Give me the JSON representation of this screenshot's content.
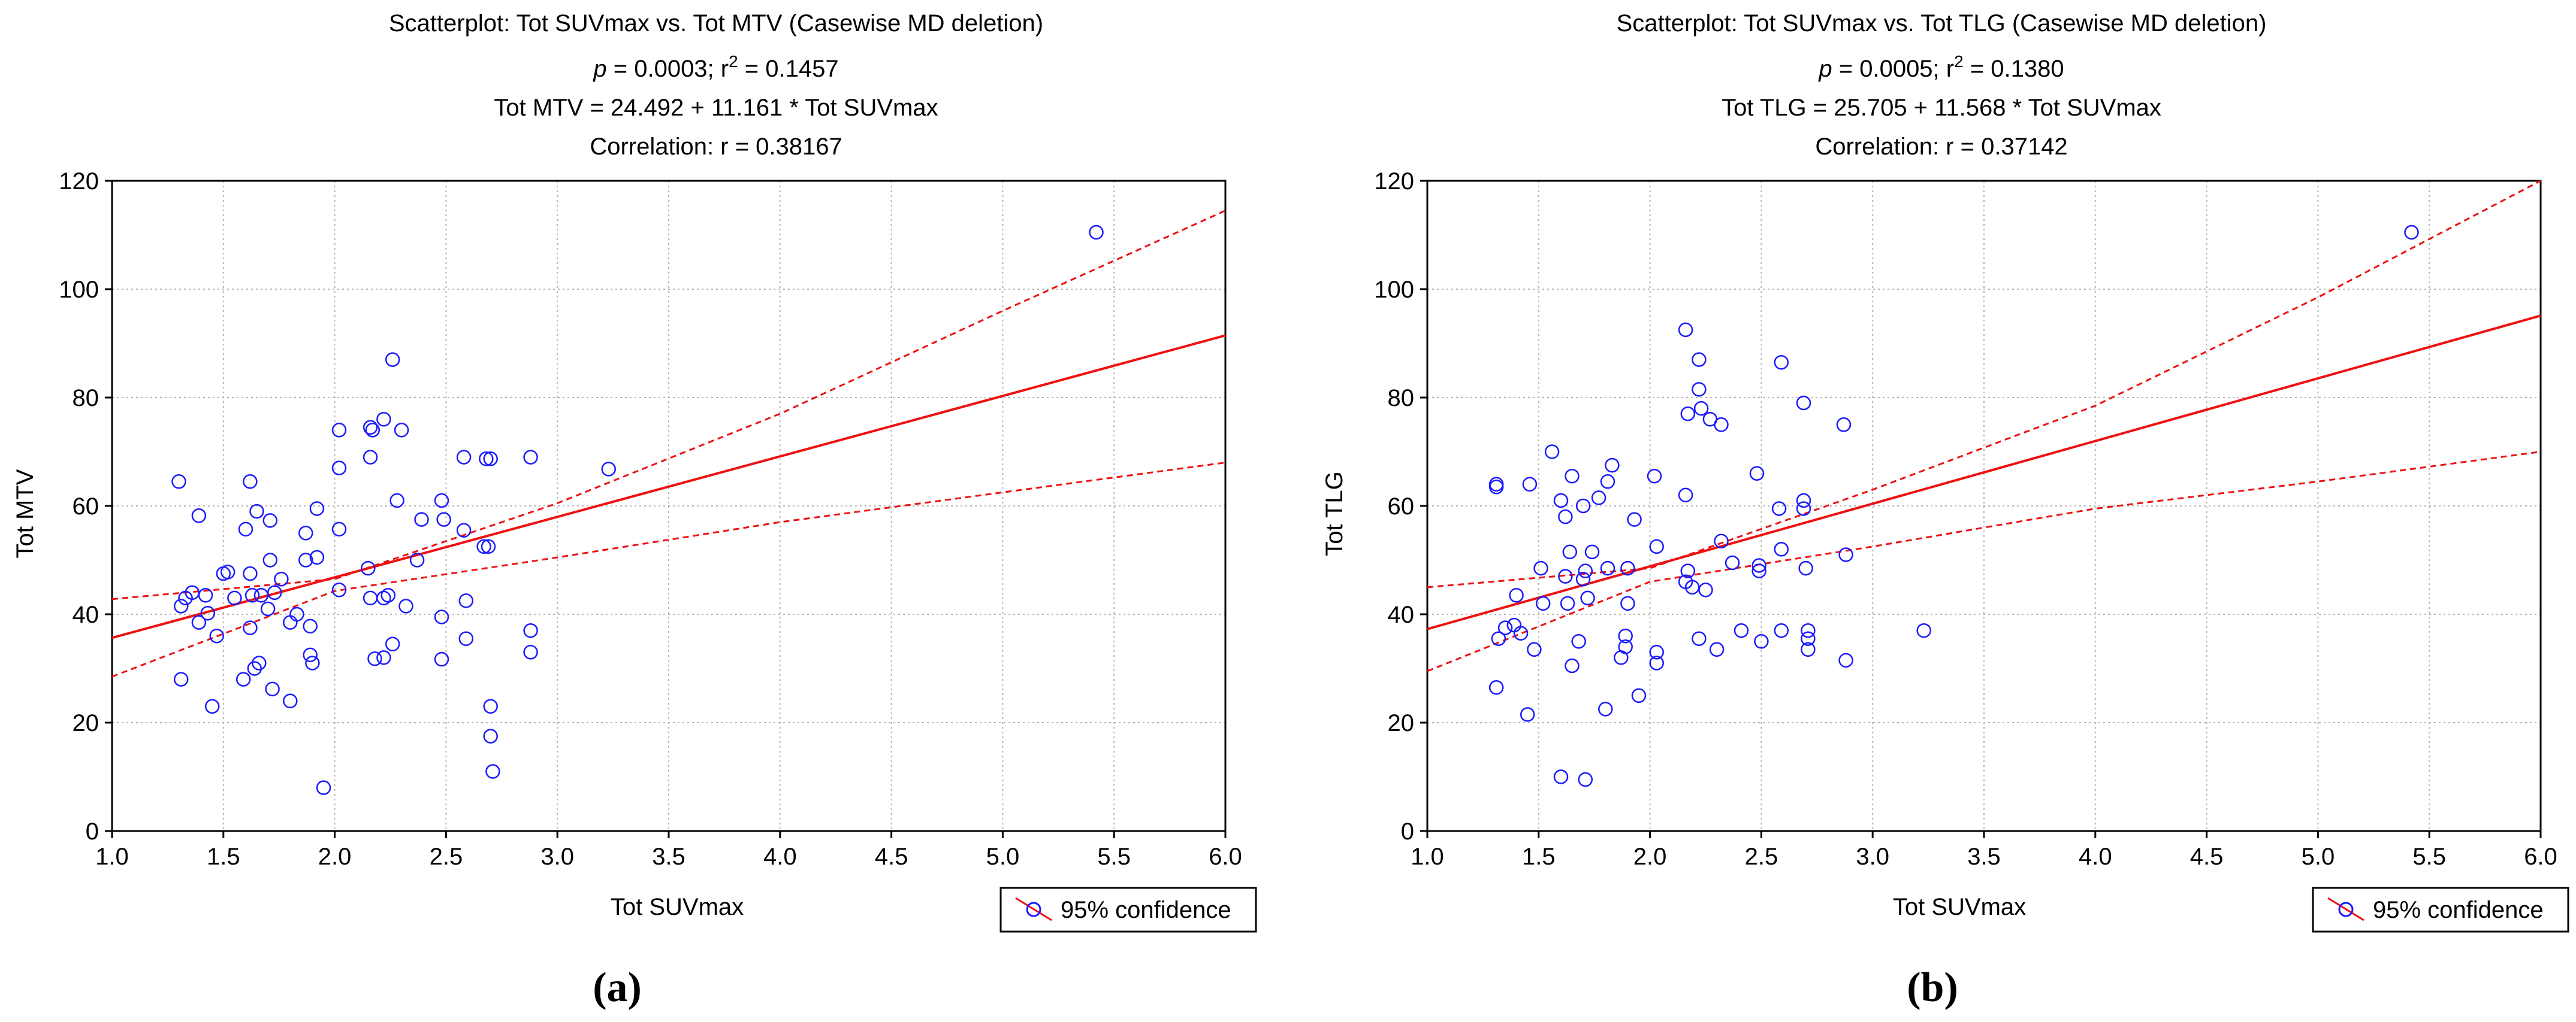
{
  "chart_data": [
    {
      "type": "scatter",
      "panel_label": "(a)",
      "title": "Scatterplot: Tot SUVmax vs. Tot MTV (Casewise MD deletion)",
      "stats": {
        "p_label": "p",
        "p_rest": " = 0.0003; r",
        "r2_exp": "2",
        "r2_rest": " = 0.1457"
      },
      "equation": "Tot MTV = 24.492 + 11.161 * Tot SUVmax",
      "correlation": "Correlation: r = 0.38167",
      "xlabel": "Tot SUVmax",
      "ylabel": "Tot MTV",
      "xlim": [
        1.0,
        6.0
      ],
      "ylim": [
        0,
        120
      ],
      "xticks": [
        "1.0",
        "1.5",
        "2.0",
        "2.5",
        "3.0",
        "3.5",
        "4.0",
        "4.5",
        "5.0",
        "5.5",
        "6.0"
      ],
      "yticks": [
        "0",
        "20",
        "40",
        "60",
        "80",
        "100",
        "120"
      ],
      "grid": true,
      "legend": {
        "label": "95% confidence",
        "position": "bottom-right"
      },
      "regression": {
        "intercept": 24.492,
        "slope": 11.161
      },
      "ci_lower": [
        [
          1.0,
          28.5
        ],
        [
          2.0,
          44.3
        ],
        [
          3.0,
          50.5
        ],
        [
          4.0,
          57.0
        ],
        [
          5.0,
          62.5
        ],
        [
          6.0,
          68.0
        ]
      ],
      "ci_upper": [
        [
          1.0,
          42.8
        ],
        [
          2.0,
          46.5
        ],
        [
          3.0,
          60.5
        ],
        [
          4.0,
          77.0
        ],
        [
          5.0,
          96.0
        ],
        [
          6.0,
          114.5
        ]
      ],
      "colors": {
        "points": "#1a1aff",
        "line": "#ee1111",
        "grid": "#b5b5b5",
        "axis": "#000000"
      },
      "points": [
        [
          1.3,
          64.5
        ],
        [
          1.31,
          41.5
        ],
        [
          1.31,
          28.0
        ],
        [
          1.33,
          43.0
        ],
        [
          1.36,
          44.0
        ],
        [
          1.39,
          58.2
        ],
        [
          1.39,
          38.5
        ],
        [
          1.42,
          43.5
        ],
        [
          1.43,
          40.2
        ],
        [
          1.45,
          23.0
        ],
        [
          1.47,
          36.0
        ],
        [
          1.5,
          47.5
        ],
        [
          1.52,
          47.8
        ],
        [
          1.55,
          43.0
        ],
        [
          1.59,
          28.0
        ],
        [
          1.6,
          55.7
        ],
        [
          1.62,
          47.5
        ],
        [
          1.62,
          37.5
        ],
        [
          1.62,
          64.5
        ],
        [
          1.63,
          43.5
        ],
        [
          1.64,
          30.0
        ],
        [
          1.65,
          59.0
        ],
        [
          1.66,
          31.0
        ],
        [
          1.67,
          43.5
        ],
        [
          1.7,
          41.0
        ],
        [
          1.71,
          50.0
        ],
        [
          1.71,
          57.3
        ],
        [
          1.72,
          26.2
        ],
        [
          1.73,
          44.0
        ],
        [
          1.76,
          46.5
        ],
        [
          1.8,
          24.0
        ],
        [
          1.8,
          38.5
        ],
        [
          1.83,
          40.0
        ],
        [
          1.87,
          50.0
        ],
        [
          1.87,
          55.0
        ],
        [
          1.89,
          37.8
        ],
        [
          1.89,
          32.5
        ],
        [
          1.9,
          31.0
        ],
        [
          1.92,
          59.5
        ],
        [
          1.92,
          50.5
        ],
        [
          1.95,
          8.0
        ],
        [
          2.02,
          74.0
        ],
        [
          2.02,
          67.0
        ],
        [
          2.02,
          55.7
        ],
        [
          2.02,
          44.5
        ],
        [
          2.15,
          48.5
        ],
        [
          2.16,
          74.5
        ],
        [
          2.16,
          43.0
        ],
        [
          2.16,
          69.0
        ],
        [
          2.17,
          74.0
        ],
        [
          2.18,
          31.8
        ],
        [
          2.22,
          76.0
        ],
        [
          2.22,
          32.0
        ],
        [
          2.22,
          43.0
        ],
        [
          2.24,
          43.5
        ],
        [
          2.26,
          87.0
        ],
        [
          2.26,
          34.5
        ],
        [
          2.28,
          61.0
        ],
        [
          2.3,
          74.0
        ],
        [
          2.32,
          41.5
        ],
        [
          2.37,
          50.0
        ],
        [
          2.39,
          57.5
        ],
        [
          2.48,
          31.7
        ],
        [
          2.48,
          39.5
        ],
        [
          2.48,
          61.0
        ],
        [
          2.49,
          57.5
        ],
        [
          2.58,
          69.0
        ],
        [
          2.58,
          55.5
        ],
        [
          2.59,
          42.5
        ],
        [
          2.59,
          35.5
        ],
        [
          2.67,
          52.5
        ],
        [
          2.68,
          68.7
        ],
        [
          2.69,
          52.5
        ],
        [
          2.7,
          68.7
        ],
        [
          2.7,
          23.0
        ],
        [
          2.7,
          17.5
        ],
        [
          2.71,
          11.0
        ],
        [
          2.88,
          69.0
        ],
        [
          2.88,
          37.0
        ],
        [
          2.88,
          33.0
        ],
        [
          3.23,
          66.8
        ],
        [
          5.42,
          110.5
        ]
      ]
    },
    {
      "type": "scatter",
      "panel_label": "(b)",
      "title": "Scatterplot: Tot SUVmax vs. Tot TLG (Casewise MD deletion)",
      "stats": {
        "p_label": "p",
        "p_rest": " = 0.0005; r",
        "r2_exp": "2",
        "r2_rest": " = 0.1380"
      },
      "equation": "Tot TLG = 25.705 + 11.568 * Tot SUVmax",
      "correlation": "Correlation: r = 0.37142",
      "xlabel": "Tot SUVmax",
      "ylabel": "Tot TLG",
      "xlim": [
        1.0,
        6.0
      ],
      "ylim": [
        0,
        120
      ],
      "xticks": [
        "1.0",
        "1.5",
        "2.0",
        "2.5",
        "3.0",
        "3.5",
        "4.0",
        "4.5",
        "5.0",
        "5.5",
        "6.0"
      ],
      "yticks": [
        "0",
        "20",
        "40",
        "60",
        "80",
        "100",
        "120"
      ],
      "grid": true,
      "legend": {
        "label": "95% confidence",
        "position": "bottom-right"
      },
      "regression": {
        "intercept": 25.705,
        "slope": 11.568
      },
      "ci_lower": [
        [
          1.0,
          29.5
        ],
        [
          2.0,
          46.0
        ],
        [
          3.0,
          52.5
        ],
        [
          4.0,
          59.5
        ],
        [
          5.0,
          64.5
        ],
        [
          6.0,
          70.0
        ]
      ],
      "ci_upper": [
        [
          1.0,
          45.0
        ],
        [
          2.0,
          48.5
        ],
        [
          3.0,
          63.0
        ],
        [
          4.0,
          78.5
        ],
        [
          5.0,
          98.5
        ],
        [
          6.0,
          120.0
        ]
      ],
      "colors": {
        "points": "#1a1aff",
        "line": "#ee1111",
        "grid": "#b5b5b5",
        "axis": "#000000"
      },
      "points": [
        [
          1.31,
          64.0
        ],
        [
          1.31,
          63.5
        ],
        [
          1.31,
          26.5
        ],
        [
          1.32,
          35.5
        ],
        [
          1.35,
          37.5
        ],
        [
          1.39,
          38.0
        ],
        [
          1.4,
          43.5
        ],
        [
          1.42,
          36.5
        ],
        [
          1.45,
          21.5
        ],
        [
          1.46,
          64.0
        ],
        [
          1.48,
          33.5
        ],
        [
          1.51,
          48.5
        ],
        [
          1.52,
          42.0
        ],
        [
          1.56,
          70.0
        ],
        [
          1.6,
          10.0
        ],
        [
          1.6,
          61.0
        ],
        [
          1.62,
          58.0
        ],
        [
          1.62,
          47.0
        ],
        [
          1.63,
          42.0
        ],
        [
          1.64,
          51.5
        ],
        [
          1.65,
          65.5
        ],
        [
          1.65,
          30.5
        ],
        [
          1.68,
          35.0
        ],
        [
          1.7,
          60.0
        ],
        [
          1.7,
          46.5
        ],
        [
          1.71,
          9.5
        ],
        [
          1.71,
          48.0
        ],
        [
          1.72,
          43.0
        ],
        [
          1.74,
          51.5
        ],
        [
          1.77,
          61.5
        ],
        [
          1.8,
          22.5
        ],
        [
          1.81,
          64.5
        ],
        [
          1.81,
          48.5
        ],
        [
          1.83,
          67.5
        ],
        [
          1.87,
          32.0
        ],
        [
          1.89,
          36.0
        ],
        [
          1.89,
          34.0
        ],
        [
          1.9,
          42.0
        ],
        [
          1.9,
          48.5
        ],
        [
          1.93,
          57.5
        ],
        [
          1.95,
          25.0
        ],
        [
          2.02,
          65.5
        ],
        [
          2.03,
          52.5
        ],
        [
          2.03,
          33.0
        ],
        [
          2.03,
          31.0
        ],
        [
          2.16,
          92.5
        ],
        [
          2.16,
          62.0
        ],
        [
          2.16,
          46.0
        ],
        [
          2.17,
          77.0
        ],
        [
          2.17,
          48.0
        ],
        [
          2.19,
          45.0
        ],
        [
          2.22,
          87.0
        ],
        [
          2.22,
          81.5
        ],
        [
          2.22,
          35.5
        ],
        [
          2.23,
          78.0
        ],
        [
          2.25,
          44.5
        ],
        [
          2.27,
          76.0
        ],
        [
          2.3,
          33.5
        ],
        [
          2.32,
          75.0
        ],
        [
          2.32,
          53.5
        ],
        [
          2.37,
          49.5
        ],
        [
          2.41,
          37.0
        ],
        [
          2.48,
          66.0
        ],
        [
          2.49,
          49.0
        ],
        [
          2.49,
          48.0
        ],
        [
          2.5,
          35.0
        ],
        [
          2.58,
          59.5
        ],
        [
          2.59,
          52.0
        ],
        [
          2.59,
          86.5
        ],
        [
          2.59,
          37.0
        ],
        [
          2.69,
          59.5
        ],
        [
          2.69,
          61.0
        ],
        [
          2.69,
          79.0
        ],
        [
          2.7,
          48.5
        ],
        [
          2.71,
          35.5
        ],
        [
          2.71,
          37.0
        ],
        [
          2.71,
          33.5
        ],
        [
          2.87,
          75.0
        ],
        [
          2.88,
          51.0
        ],
        [
          2.88,
          31.5
        ],
        [
          3.23,
          37.0
        ],
        [
          5.42,
          110.5
        ]
      ]
    }
  ]
}
